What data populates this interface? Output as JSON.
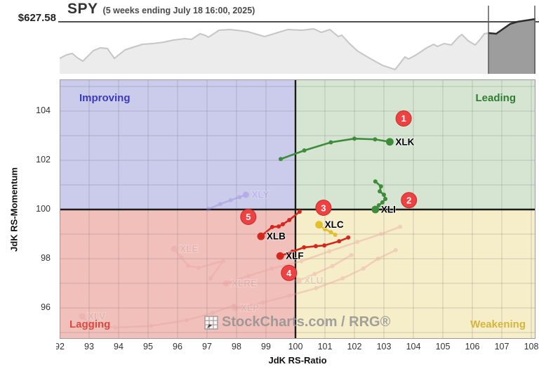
{
  "header": {
    "price": "$627.58",
    "symbol": "SPY",
    "subtitle": "(5 weeks ending July 18 16:00, 2025)"
  },
  "watermark": {
    "text": "StockCharts.com",
    "suffix": " / RRG®"
  },
  "axes": {
    "x_title": "JdK RS-Ratio",
    "y_title": "JdK RS-Momentum",
    "x_ticks": [
      92,
      93,
      94,
      95,
      96,
      97,
      98,
      99,
      100,
      101,
      102,
      103,
      104,
      105,
      106,
      107,
      108
    ],
    "y_ticks": [
      104,
      102,
      100,
      98,
      96
    ]
  },
  "quadrants": {
    "improving": {
      "label": "Improving",
      "text_color": "#3a3abb",
      "bg": "#cbcbec"
    },
    "leading": {
      "label": "Leading",
      "text_color": "#2e7d32",
      "bg": "#d6e5d2"
    },
    "lagging": {
      "label": "Lagging",
      "text_color": "#d84a44",
      "bg": "#f2c0bb"
    },
    "weakening": {
      "label": "Weakening",
      "text_color": "#d4b63c",
      "bg": "#f6edc9"
    }
  },
  "badge_color": "#ee4141",
  "chart_data": [
    {
      "type": "area",
      "name": "spy-price-sparkline",
      "title": "SPY",
      "period": "1 year, last 5 weeks highlighted",
      "last_price": 627.58,
      "highlight_from_x": 611,
      "colors": {
        "area_fill": "#ececec",
        "line": "#c6c6c6",
        "highlight_fill": "#9d9d9d",
        "highlight_line": "#2c2c2c",
        "boundary": "#5a5a5a"
      },
      "points": [
        [
          0,
          78
        ],
        [
          10,
          73
        ],
        [
          18,
          71
        ],
        [
          25,
          77
        ],
        [
          33,
          82
        ],
        [
          48,
          67
        ],
        [
          58,
          63
        ],
        [
          68,
          64
        ],
        [
          78,
          78
        ],
        [
          93,
          66
        ],
        [
          102,
          63
        ],
        [
          118,
          58
        ],
        [
          132,
          57
        ],
        [
          148,
          55
        ],
        [
          162,
          52
        ],
        [
          178,
          50
        ],
        [
          188,
          51
        ],
        [
          200,
          43
        ],
        [
          207,
          45
        ],
        [
          212,
          48
        ],
        [
          227,
          38
        ],
        [
          242,
          37
        ],
        [
          252,
          38
        ],
        [
          268,
          40
        ],
        [
          278,
          43
        ],
        [
          292,
          47
        ],
        [
          315,
          40
        ],
        [
          325,
          37
        ],
        [
          345,
          38
        ],
        [
          362,
          36
        ],
        [
          373,
          41
        ],
        [
          385,
          37
        ],
        [
          397,
          47
        ],
        [
          402,
          45
        ],
        [
          413,
          57
        ],
        [
          425,
          68
        ],
        [
          442,
          78
        ],
        [
          460,
          88
        ],
        [
          478,
          94
        ],
        [
          492,
          76
        ],
        [
          497,
          79
        ],
        [
          508,
          73
        ],
        [
          523,
          63
        ],
        [
          533,
          58
        ],
        [
          538,
          61
        ],
        [
          548,
          57
        ],
        [
          558,
          59
        ],
        [
          568,
          48
        ],
        [
          573,
          44
        ],
        [
          582,
          53
        ],
        [
          592,
          59
        ],
        [
          600,
          50
        ],
        [
          605,
          43
        ],
        [
          611,
          42
        ],
        [
          622,
          43
        ],
        [
          632,
          36
        ],
        [
          642,
          29
        ],
        [
          652,
          26
        ],
        [
          665,
          24
        ],
        [
          678,
          22
        ]
      ]
    },
    {
      "type": "scatter",
      "name": "rrg-rotation-graph",
      "x_range": [
        92,
        108.6
      ],
      "y_range": [
        94.7,
        105.3
      ],
      "series": [
        {
          "symbol": "XLY",
          "faded": true,
          "color": "#8d84d8",
          "label_color": "#a39bdd",
          "points": [
            [
              97.05,
              100.02
            ],
            [
              97.45,
              100.22
            ],
            [
              97.8,
              100.38
            ],
            [
              98.1,
              100.5
            ],
            [
              98.32,
              100.6
            ]
          ]
        },
        {
          "symbol": "XLE",
          "faded": true,
          "color": "#e79f9f",
          "label_color": "#cfa3a3",
          "points": [
            [
              97.12,
              97.2
            ],
            [
              97.55,
              97.91
            ],
            [
              96.71,
              97.63
            ],
            [
              96.36,
              97.71
            ],
            [
              96.12,
              98.06
            ],
            [
              95.88,
              98.4
            ]
          ]
        },
        {
          "symbol": "XLRE",
          "faded": true,
          "color": "#e79f9f",
          "label_color": "#cfa3a3",
          "points": [
            [
              103.55,
              99.3
            ],
            [
              102.9,
              99.0
            ],
            [
              102.1,
              98.68
            ],
            [
              101.15,
              98.3
            ],
            [
              100.2,
              97.9
            ],
            [
              99.2,
              97.6
            ],
            [
              98.4,
              97.3
            ],
            [
              97.64,
              97.0
            ]
          ]
        },
        {
          "symbol": "XLP",
          "faded": true,
          "color": "#e79f9f",
          "label_color": "#cfa3a3",
          "points": [
            [
              103.4,
              98.35
            ],
            [
              102.8,
              98.0
            ],
            [
              102.3,
              97.6
            ],
            [
              101.6,
              97.2
            ],
            [
              100.7,
              96.8
            ],
            [
              99.8,
              96.5
            ],
            [
              98.9,
              96.22
            ],
            [
              97.95,
              96.0
            ]
          ]
        },
        {
          "symbol": "XLU",
          "faded": true,
          "color": "#e79f9f",
          "label_color": "#cfa3a3",
          "points": [
            [
              101.9,
              98.15
            ],
            [
              101.25,
              97.7
            ],
            [
              100.65,
              97.38
            ],
            [
              100.1,
              97.11
            ]
          ]
        },
        {
          "symbol": "XLV",
          "faded": true,
          "color": "#e79f9f",
          "label_color": "#cfa3a3",
          "points": [
            [
              97.9,
              96.1
            ],
            [
              97.2,
              95.8
            ],
            [
              96.3,
              95.5
            ],
            [
              95.1,
              95.27
            ],
            [
              93.9,
              95.2
            ],
            [
              93.1,
              95.32
            ],
            [
              92.76,
              95.66
            ]
          ]
        },
        {
          "symbol": "XLK",
          "faded": false,
          "color": "#3c8c3c",
          "label_color": "#000000",
          "points": [
            [
              99.5,
              102.05
            ],
            [
              100.3,
              102.4
            ],
            [
              101.2,
              102.73
            ],
            [
              102.0,
              102.88
            ],
            [
              102.7,
              102.85
            ],
            [
              103.2,
              102.75
            ]
          ]
        },
        {
          "symbol": "XLI",
          "faded": false,
          "color": "#3c8c3c",
          "label_color": "#000000",
          "points": [
            [
              102.71,
              101.14
            ],
            [
              102.9,
              100.94
            ],
            [
              102.86,
              100.74
            ],
            [
              103.0,
              100.6
            ],
            [
              103.05,
              100.43
            ],
            [
              102.95,
              100.29
            ],
            [
              102.83,
              100.17
            ],
            [
              102.71,
              100.0
            ]
          ]
        },
        {
          "symbol": "XLC",
          "faded": false,
          "color": "#e0c02c",
          "label_color": "#000000",
          "points": [
            [
              101.35,
              98.97
            ],
            [
              101.2,
              99.08
            ],
            [
              101.0,
              99.2
            ],
            [
              100.8,
              99.38
            ]
          ]
        },
        {
          "symbol": "XLB",
          "faded": false,
          "color": "#d4281e",
          "label_color": "#000000",
          "points": [
            [
              100.14,
              99.91
            ],
            [
              99.79,
              99.57
            ],
            [
              99.57,
              99.4
            ],
            [
              99.43,
              99.31
            ],
            [
              99.21,
              99.29
            ],
            [
              98.83,
              98.91
            ]
          ]
        },
        {
          "symbol": "XLF",
          "faded": false,
          "color": "#d4281e",
          "label_color": "#000000",
          "points": [
            [
              101.79,
              98.86
            ],
            [
              101.48,
              98.71
            ],
            [
              100.98,
              98.54
            ],
            [
              100.69,
              98.51
            ],
            [
              100.29,
              98.46
            ],
            [
              99.9,
              98.29
            ],
            [
              99.48,
              98.11
            ]
          ]
        }
      ],
      "badges": [
        {
          "num": "1",
          "x": 103.67,
          "y": 103.7
        },
        {
          "num": "2",
          "x": 103.85,
          "y": 100.38
        },
        {
          "num": "3",
          "x": 100.95,
          "y": 100.07
        },
        {
          "num": "4",
          "x": 99.78,
          "y": 97.42
        },
        {
          "num": "5",
          "x": 98.4,
          "y": 99.7
        }
      ]
    }
  ]
}
